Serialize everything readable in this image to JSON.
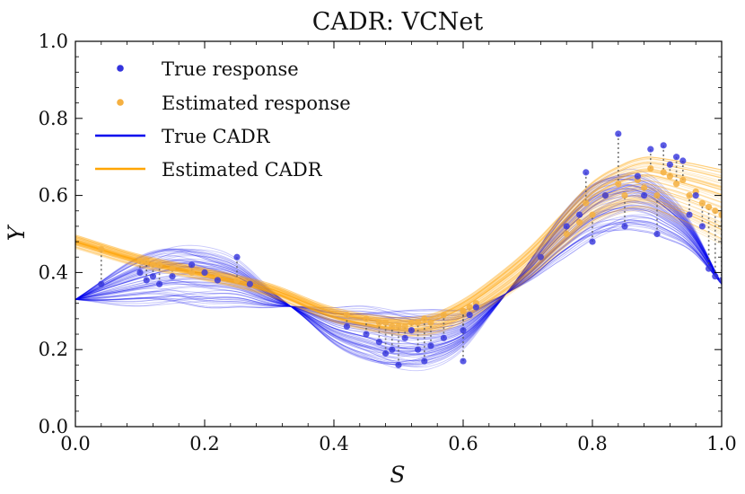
{
  "chart_data": {
    "type": "line",
    "title": "CADR: VCNet",
    "xlabel": "S",
    "ylabel": "Y",
    "xlim": [
      0,
      1
    ],
    "ylim": [
      0,
      1
    ],
    "xticks": [
      "0.0",
      "0.2",
      "0.4",
      "0.6",
      "0.8",
      "1.0"
    ],
    "yticks": [
      "0.0",
      "0.2",
      "0.4",
      "0.6",
      "0.8",
      "1.0"
    ],
    "grid": false,
    "legend_position": "top-left",
    "legend": [
      {
        "label": "True response",
        "kind": "marker",
        "color": "#3333dd"
      },
      {
        "label": "Estimated response",
        "kind": "marker",
        "color": "#f5b041"
      },
      {
        "label": "True CADR",
        "kind": "line",
        "color": "#0000ee"
      },
      {
        "label": "Estimated CADR",
        "kind": "line",
        "color": "#ffa500"
      }
    ],
    "colors": {
      "true": "#0000ee",
      "estimated": "#ffa500",
      "true_point": "#3333dd",
      "estimated_point": "#f5b041",
      "connector": "#555555"
    },
    "true_cadr_mean": {
      "x": [
        0.0,
        0.1,
        0.15,
        0.2,
        0.25,
        0.3,
        0.35,
        0.4,
        0.45,
        0.5,
        0.55,
        0.6,
        0.65,
        0.7,
        0.75,
        0.8,
        0.85,
        0.88,
        0.9,
        0.95,
        1.0
      ],
      "y": [
        0.33,
        0.38,
        0.395,
        0.39,
        0.375,
        0.335,
        0.3,
        0.26,
        0.24,
        0.225,
        0.225,
        0.25,
        0.32,
        0.4,
        0.49,
        0.56,
        0.59,
        0.585,
        0.57,
        0.5,
        0.37
      ]
    },
    "estimated_cadr_mean": {
      "x": [
        0.0,
        0.1,
        0.2,
        0.3,
        0.4,
        0.5,
        0.55,
        0.6,
        0.65,
        0.7,
        0.75,
        0.8,
        0.85,
        0.88,
        0.9,
        0.95,
        1.0
      ],
      "y": [
        0.48,
        0.43,
        0.395,
        0.355,
        0.29,
        0.26,
        0.265,
        0.3,
        0.355,
        0.42,
        0.5,
        0.58,
        0.62,
        0.63,
        0.625,
        0.6,
        0.57
      ]
    },
    "true_response_points": {
      "x": [
        0.04,
        0.1,
        0.11,
        0.12,
        0.13,
        0.15,
        0.18,
        0.2,
        0.22,
        0.25,
        0.27,
        0.42,
        0.45,
        0.47,
        0.48,
        0.49,
        0.5,
        0.51,
        0.52,
        0.53,
        0.54,
        0.55,
        0.57,
        0.6,
        0.6,
        0.61,
        0.62,
        0.72,
        0.76,
        0.78,
        0.79,
        0.8,
        0.82,
        0.84,
        0.85,
        0.87,
        0.88,
        0.89,
        0.9,
        0.91,
        0.92,
        0.93,
        0.94,
        0.95,
        0.96,
        0.97,
        0.98,
        0.99,
        1.0
      ],
      "y": [
        0.37,
        0.4,
        0.38,
        0.39,
        0.37,
        0.39,
        0.42,
        0.4,
        0.38,
        0.44,
        0.37,
        0.26,
        0.24,
        0.22,
        0.19,
        0.2,
        0.16,
        0.23,
        0.25,
        0.2,
        0.17,
        0.21,
        0.23,
        0.17,
        0.25,
        0.29,
        0.31,
        0.44,
        0.52,
        0.55,
        0.66,
        0.48,
        0.6,
        0.76,
        0.52,
        0.65,
        0.6,
        0.72,
        0.5,
        0.73,
        0.68,
        0.7,
        0.69,
        0.55,
        0.6,
        0.52,
        0.41,
        0.39,
        0.38
      ]
    },
    "estimated_response_points": {
      "x": [
        0.04,
        0.1,
        0.11,
        0.12,
        0.13,
        0.15,
        0.18,
        0.2,
        0.22,
        0.25,
        0.27,
        0.42,
        0.45,
        0.47,
        0.48,
        0.49,
        0.5,
        0.51,
        0.52,
        0.53,
        0.54,
        0.55,
        0.57,
        0.6,
        0.6,
        0.61,
        0.62,
        0.72,
        0.76,
        0.78,
        0.79,
        0.8,
        0.82,
        0.84,
        0.85,
        0.87,
        0.88,
        0.89,
        0.9,
        0.91,
        0.92,
        0.93,
        0.94,
        0.95,
        0.96,
        0.97,
        0.98,
        0.99,
        1.0
      ],
      "y": [
        0.46,
        0.43,
        0.43,
        0.42,
        0.42,
        0.41,
        0.4,
        0.4,
        0.39,
        0.38,
        0.37,
        0.29,
        0.28,
        0.27,
        0.27,
        0.26,
        0.26,
        0.26,
        0.27,
        0.27,
        0.28,
        0.27,
        0.29,
        0.3,
        0.3,
        0.31,
        0.32,
        0.44,
        0.5,
        0.53,
        0.58,
        0.55,
        0.6,
        0.63,
        0.6,
        0.64,
        0.62,
        0.67,
        0.6,
        0.66,
        0.65,
        0.63,
        0.64,
        0.6,
        0.61,
        0.58,
        0.57,
        0.56,
        0.55
      ]
    }
  }
}
